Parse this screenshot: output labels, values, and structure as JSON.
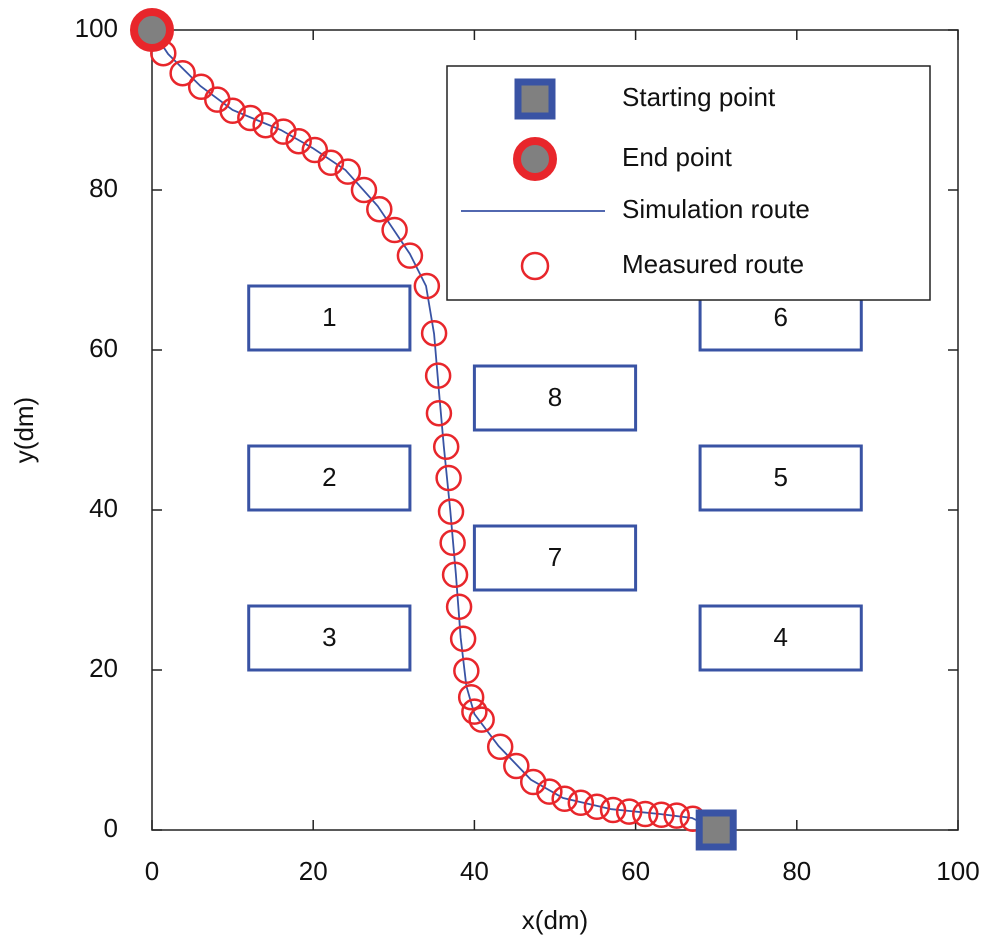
{
  "chart_data": {
    "type": "line",
    "xlabel": "x(dm)",
    "ylabel": "y(dm)",
    "xlim": [
      0,
      100
    ],
    "ylim": [
      0,
      100
    ],
    "xticks": [
      0,
      20,
      40,
      60,
      80,
      100
    ],
    "yticks": [
      0,
      20,
      40,
      60,
      80,
      100
    ],
    "legend": "upper right",
    "obstacles": [
      {
        "label": "1",
        "x": [
          12,
          32
        ],
        "y": [
          60,
          68
        ],
        "color": "#3953a4"
      },
      {
        "label": "2",
        "x": [
          12,
          32
        ],
        "y": [
          40,
          48
        ],
        "color": "#3953a4"
      },
      {
        "label": "3",
        "x": [
          12,
          32
        ],
        "y": [
          20,
          28
        ],
        "color": "#3953a4"
      },
      {
        "label": "4",
        "x": [
          68,
          88
        ],
        "y": [
          20,
          28
        ],
        "color": "#3953a4"
      },
      {
        "label": "5",
        "x": [
          68,
          88
        ],
        "y": [
          40,
          48
        ],
        "color": "#3953a4"
      },
      {
        "label": "6",
        "x": [
          68,
          88
        ],
        "y": [
          60,
          68
        ],
        "color": "#3953a4"
      },
      {
        "label": "7",
        "x": [
          40,
          60
        ],
        "y": [
          30,
          38
        ],
        "color": "#3953a4"
      },
      {
        "label": "8",
        "x": [
          40,
          60
        ],
        "y": [
          50,
          58
        ],
        "color": "#3953a4"
      }
    ],
    "series": [
      {
        "name": "Starting point",
        "style": "square",
        "color": "#3953a4",
        "fill": "#808080",
        "x": [
          70
        ],
        "y": [
          0
        ]
      },
      {
        "name": "End point",
        "style": "dot",
        "color": "#e8262b",
        "fill": "#808080",
        "x": [
          0
        ],
        "y": [
          100
        ]
      },
      {
        "name": "Simulation route",
        "style": "line",
        "color": "#3953a4",
        "x": [
          0,
          2,
          6,
          10,
          16,
          20,
          24,
          28,
          32,
          34,
          35,
          35.5,
          36.2,
          37,
          37.7,
          38.3,
          39,
          40,
          43,
          47,
          51,
          57,
          63,
          67,
          70
        ],
        "y": [
          100,
          97,
          93,
          90,
          87.5,
          85.2,
          82.5,
          78,
          72,
          68,
          62,
          56,
          48,
          40,
          32,
          24,
          18,
          14.5,
          10.5,
          6.3,
          4,
          2.6,
          2,
          1.5,
          0
        ]
      },
      {
        "name": "Measured route",
        "style": "circles",
        "color": "#e8262b",
        "x": [
          1.4,
          3.8,
          6.1,
          8.1,
          10.0,
          12.2,
          14.1,
          16.3,
          18.2,
          20.2,
          22.2,
          24.3,
          26.3,
          28.2,
          30.1,
          32.0,
          34.1,
          35.0,
          35.5,
          35.6,
          36.5,
          36.8,
          37.1,
          37.3,
          37.6,
          38.1,
          38.6,
          39.0,
          39.6,
          40.0,
          40.9,
          43.2,
          45.2,
          47.3,
          49.3,
          51.2,
          53.2,
          55.2,
          57.2,
          59.2,
          61.2,
          63.2,
          65.1,
          67.1,
          69.4
        ],
        "y": [
          97.1,
          94.6,
          92.9,
          91.3,
          89.9,
          89.0,
          88.1,
          87.3,
          86.1,
          85.0,
          83.4,
          82.3,
          80.0,
          77.6,
          75.0,
          71.8,
          68.0,
          62.1,
          56.8,
          52.1,
          47.9,
          44.0,
          39.8,
          35.9,
          31.9,
          27.9,
          23.9,
          19.9,
          16.6,
          14.8,
          13.8,
          10.4,
          8.0,
          6.0,
          4.8,
          3.9,
          3.4,
          2.9,
          2.5,
          2.3,
          2.0,
          1.9,
          1.8,
          1.4,
          0.4
        ]
      }
    ]
  }
}
